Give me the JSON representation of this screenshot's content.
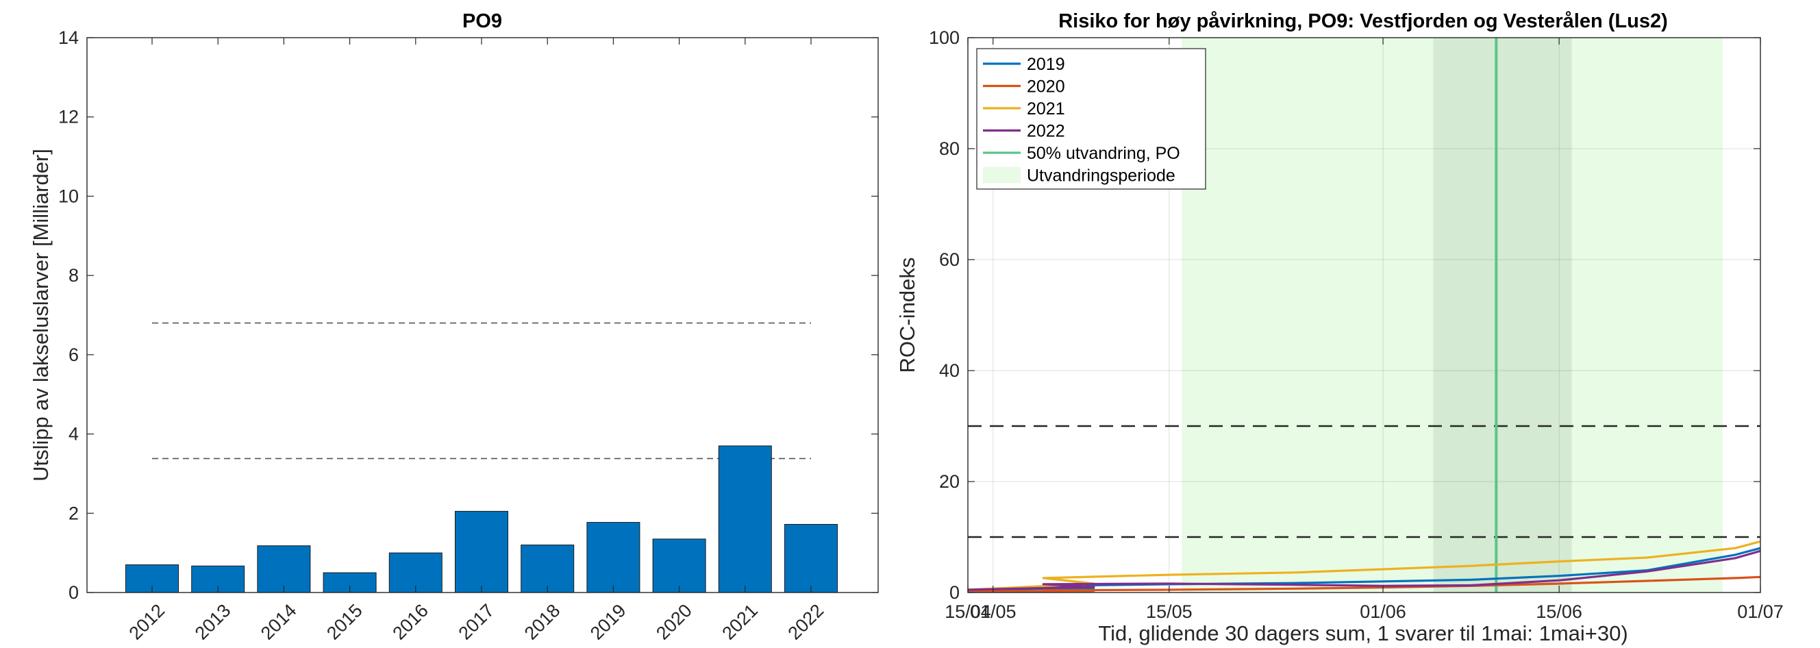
{
  "chart_data": [
    {
      "type": "bar",
      "title": "PO9",
      "xlabel": "",
      "ylabel": "Utslipp av lakseluslarver [Milliarder]",
      "ylim": [
        0,
        14
      ],
      "yticks": [
        0,
        2,
        4,
        6,
        8,
        10,
        12,
        14
      ],
      "categories": [
        "2012",
        "2013",
        "2014",
        "2015",
        "2016",
        "2017",
        "2018",
        "2019",
        "2020",
        "2021",
        "2022"
      ],
      "values": [
        0.7,
        0.67,
        1.18,
        0.5,
        1.0,
        2.05,
        1.2,
        1.77,
        1.35,
        3.7,
        1.72
      ],
      "bar_color": "#0072BD",
      "reference_lines": [
        6.8,
        3.38
      ],
      "grid": false
    },
    {
      "type": "line",
      "title": "Risiko for høy påvirkning, PO9: Vestfjorden og Vesterålen (Lus2)",
      "xlabel": "Tid, glidende 30 dagers sum, 1 svarer til 1mai: 1mai+30)",
      "ylabel": "ROC-indeks",
      "ylim": [
        0,
        100
      ],
      "yticks": [
        0,
        20,
        40,
        60,
        80,
        100
      ],
      "xlim": [
        "15/04",
        "01/07"
      ],
      "xticks": [
        "15/04",
        "01/05",
        "15/05",
        "01/06",
        "15/06",
        "01/07"
      ],
      "grid": true,
      "legend_position": "top-left",
      "x": [
        "15/04",
        "25/04",
        "05/05",
        "15/05",
        "25/05",
        "01/06",
        "08/06",
        "15/06",
        "22/06",
        "29/06",
        "01/07"
      ],
      "series": [
        {
          "name": "2019",
          "color": "#0072BD",
          "values": [
            0.5,
            0.8,
            1.2,
            1.5,
            1.7,
            2.0,
            2.3,
            3.0,
            4.0,
            6.8,
            8.0
          ]
        },
        {
          "name": "2020",
          "color": "#D95319",
          "values": [
            0.2,
            0.3,
            0.4,
            0.5,
            0.7,
            0.9,
            1.2,
            1.6,
            2.1,
            2.6,
            2.8
          ]
        },
        {
          "name": "2021",
          "color": "#EDB120",
          "values": [
            0.5,
            1.6,
            2.6,
            3.2,
            3.6,
            4.2,
            4.8,
            5.6,
            6.3,
            8.0,
            9.2
          ]
        },
        {
          "name": "2022",
          "color": "#7E2F8E",
          "values": [
            0.5,
            1.0,
            1.5,
            1.6,
            1.4,
            1.2,
            1.3,
            2.2,
            3.8,
            6.2,
            7.5
          ]
        }
      ],
      "median_line": {
        "label": "50% utvandring, PO",
        "x": "10/06",
        "color": "#5BC48A"
      },
      "period": {
        "label": "Utvandringsperiode",
        "start": "16/05",
        "end": "28/06",
        "color": "#E8FBE5"
      },
      "inner_period": {
        "start": "05/06",
        "end": "16/06",
        "color": "#D5EAD2"
      },
      "reference_lines": [
        30,
        10
      ]
    }
  ]
}
